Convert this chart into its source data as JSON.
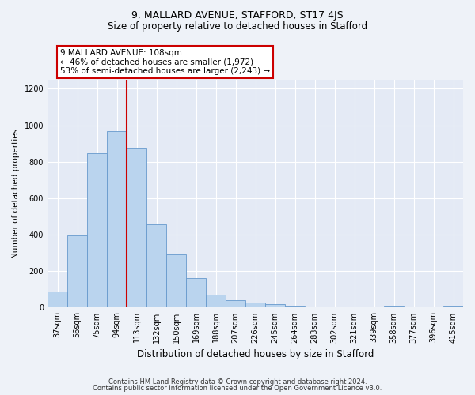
{
  "title1": "9, MALLARD AVENUE, STAFFORD, ST17 4JS",
  "title2": "Size of property relative to detached houses in Stafford",
  "xlabel": "Distribution of detached houses by size in Stafford",
  "ylabel": "Number of detached properties",
  "categories": [
    "37sqm",
    "56sqm",
    "75sqm",
    "94sqm",
    "113sqm",
    "132sqm",
    "150sqm",
    "169sqm",
    "188sqm",
    "207sqm",
    "226sqm",
    "245sqm",
    "264sqm",
    "283sqm",
    "302sqm",
    "321sqm",
    "339sqm",
    "358sqm",
    "377sqm",
    "396sqm",
    "415sqm"
  ],
  "values": [
    90,
    395,
    848,
    968,
    875,
    455,
    293,
    163,
    70,
    42,
    30,
    20,
    10,
    0,
    0,
    0,
    0,
    10,
    0,
    0,
    10
  ],
  "bar_color": "#bad4ee",
  "bar_edge_color": "#6699cc",
  "vline_color": "#cc0000",
  "vline_x_index": 4,
  "annotation_text": "9 MALLARD AVENUE: 108sqm\n← 46% of detached houses are smaller (1,972)\n53% of semi-detached houses are larger (2,243) →",
  "annotation_box_color": "#ffffff",
  "annotation_box_edge_color": "#cc0000",
  "footer1": "Contains HM Land Registry data © Crown copyright and database right 2024.",
  "footer2": "Contains public sector information licensed under the Open Government Licence v3.0.",
  "ylim": [
    0,
    1250
  ],
  "yticks": [
    0,
    200,
    400,
    600,
    800,
    1000,
    1200
  ],
  "bg_color": "#eef2f8",
  "plot_bg_color": "#e4eaf5",
  "title1_fontsize": 9,
  "title2_fontsize": 8.5,
  "xlabel_fontsize": 8.5,
  "ylabel_fontsize": 7.5,
  "tick_fontsize": 7,
  "footer_fontsize": 6,
  "ann_fontsize": 7.5
}
